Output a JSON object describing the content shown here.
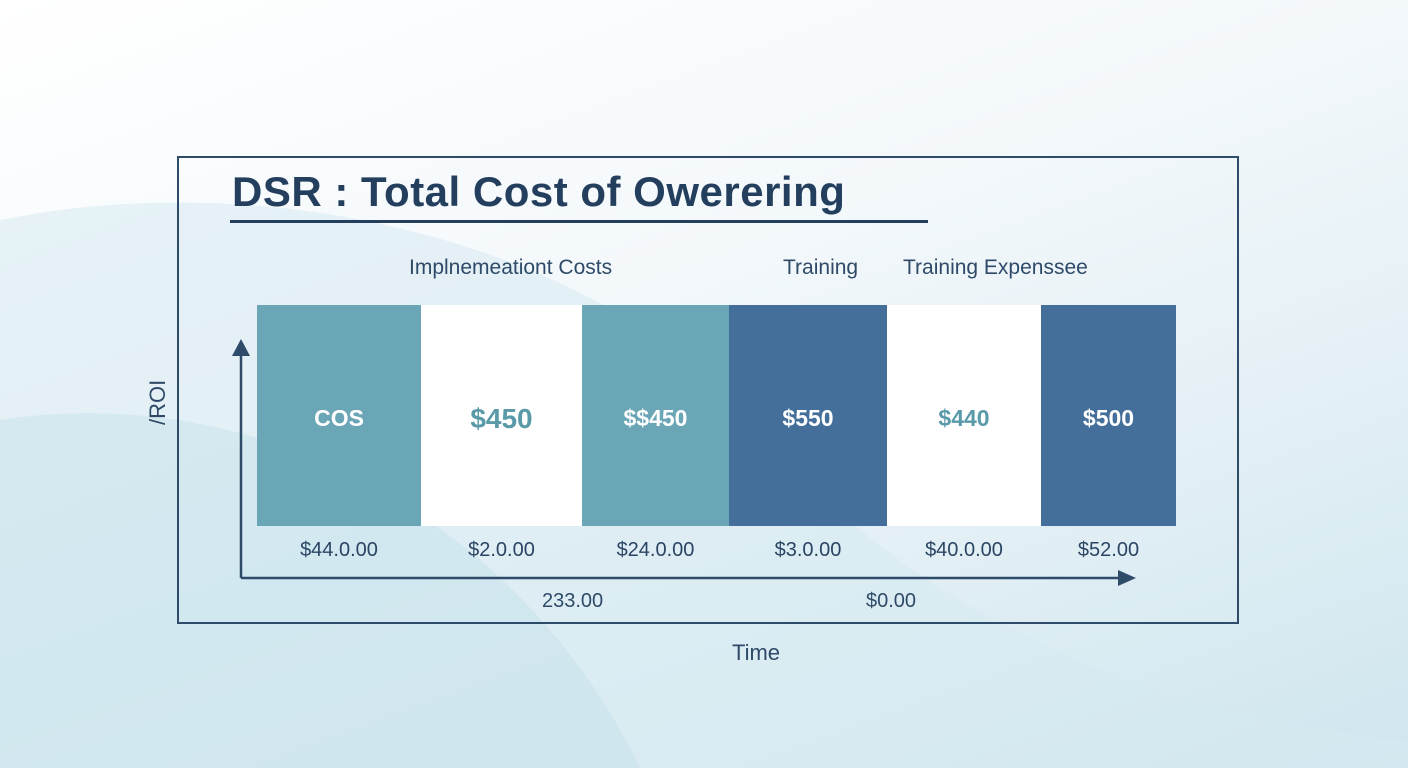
{
  "chart_data": {
    "type": "table",
    "title": "DSR : Total Cost of Owerering",
    "xlabel": "Time",
    "ylabel": "/ROI",
    "column_labels": [
      "Implnemeationt Costs",
      "Training",
      "Training Expenssee"
    ],
    "cells": [
      {
        "label": "COS",
        "value_label": "$44.0.00",
        "color": "#6aa6b6",
        "text_color": "#ffffff"
      },
      {
        "label": "$450",
        "value_label": "$2.0.00",
        "color": "#ffffff",
        "text_color": "#5a9aa8"
      },
      {
        "label": "$$450",
        "value_label": "$24.0.00",
        "color": "#6aa6b6",
        "text_color": "#ffffff"
      },
      {
        "label": "$550",
        "value_label": "$3.0.00",
        "color": "#456f9b",
        "text_color": "#ffffff"
      },
      {
        "label": "$440",
        "value_label": "$40.0.00",
        "color": "#ffffff",
        "text_color": "#5a9aa8"
      },
      {
        "label": "$500",
        "value_label": "$52.00",
        "color": "#456f9b",
        "text_color": "#ffffff"
      }
    ],
    "axis_notes": [
      "233.00",
      "$0.00"
    ],
    "grid": false
  }
}
